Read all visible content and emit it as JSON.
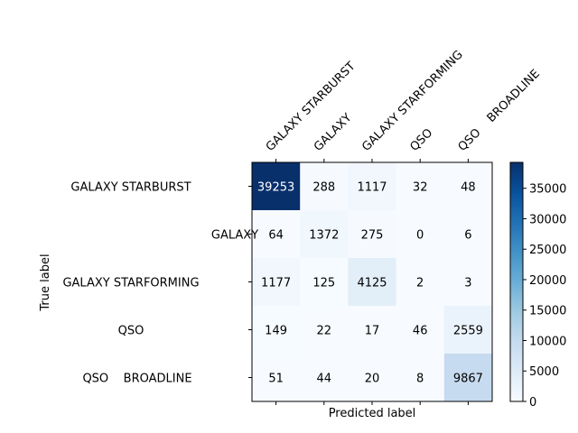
{
  "chart_data": {
    "type": "heatmap",
    "title": "",
    "xlabel": "Predicted label",
    "ylabel": "True label",
    "predicted_labels": [
      "GALAXY STARBURST",
      "GALAXY",
      "GALAXY STARFORMING",
      "QSO",
      "QSO    BROADLINE"
    ],
    "true_labels": [
      "GALAXY STARBURST",
      "GALAXY",
      "GALAXY STARFORMING",
      "QSO",
      "QSO    BROADLINE"
    ],
    "matrix": [
      [
        39253,
        288,
        1117,
        32,
        48
      ],
      [
        64,
        1372,
        275,
        0,
        6
      ],
      [
        1177,
        125,
        4125,
        2,
        3
      ],
      [
        149,
        22,
        17,
        46,
        2559
      ],
      [
        51,
        44,
        20,
        8,
        9867
      ]
    ],
    "colormap": "Blues",
    "color_range": [
      0,
      39253
    ],
    "colorbar_ticks": [
      0,
      5000,
      10000,
      15000,
      20000,
      25000,
      30000,
      35000
    ],
    "grid": false
  }
}
